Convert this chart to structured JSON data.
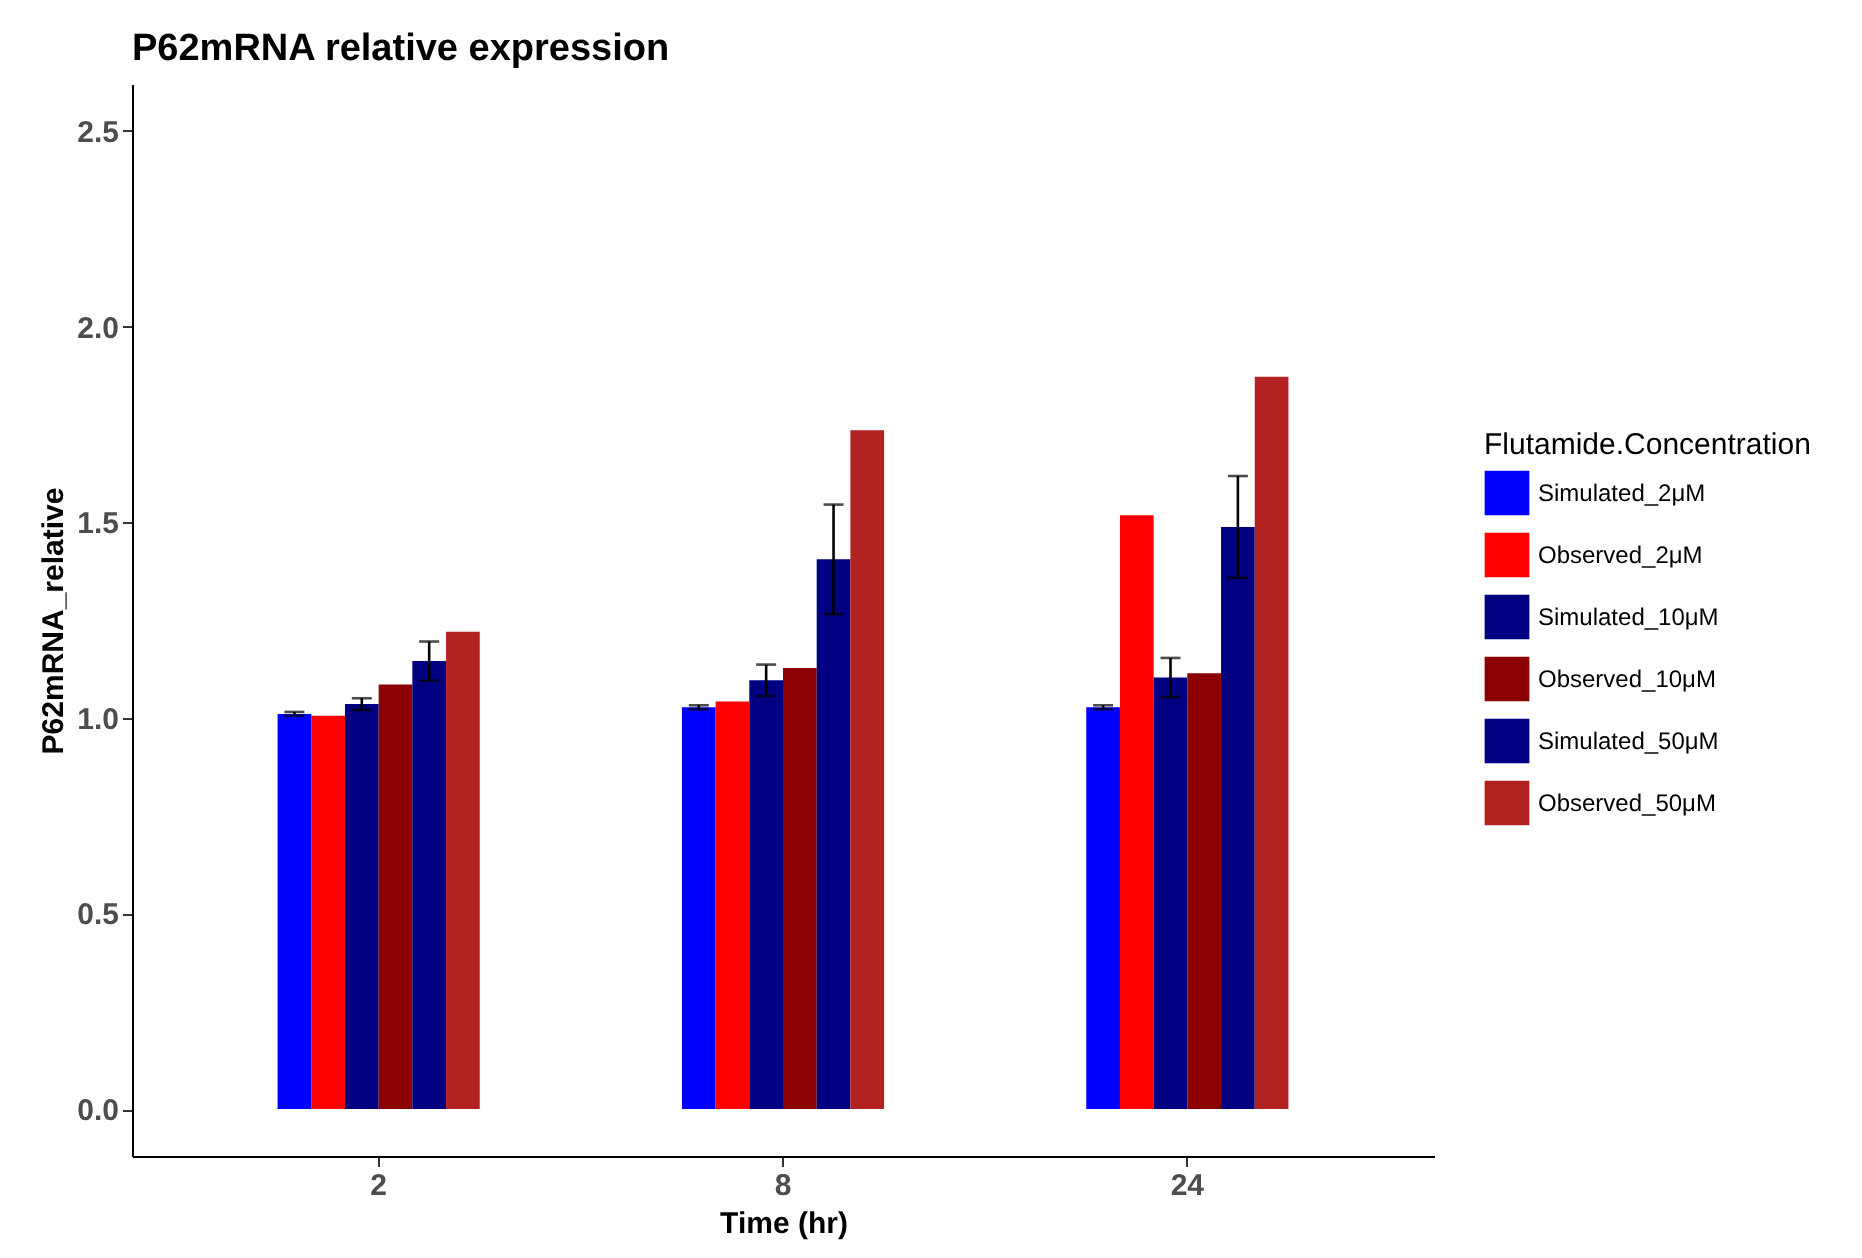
{
  "chart_data": {
    "type": "bar",
    "title": "P62mRNA relative expression",
    "xlabel": "Time (hr)",
    "ylabel": "P62mRNA_relative",
    "legend_title": "Flutamide.Concentration",
    "legend": "right",
    "grid": false,
    "categories": [
      "2",
      "8",
      "24"
    ],
    "ylim": [
      -0.12,
      2.62
    ],
    "yticks": [
      {
        "value": 0,
        "label": "0.0"
      },
      {
        "value": 0.5,
        "label": "0.5"
      },
      {
        "value": 1,
        "label": "1.0"
      },
      {
        "value": 1.5,
        "label": "1.5"
      },
      {
        "value": 2,
        "label": "2.0"
      },
      {
        "value": 2.5,
        "label": "2.5"
      }
    ],
    "series": [
      {
        "name": "Simulated_2μM",
        "color": "#0000ff",
        "values": [
          1.01,
          1.027,
          1.027
        ],
        "errors": [
          0.005,
          0.005,
          0.005
        ]
      },
      {
        "name": "Observed_2μM",
        "color": "#ff0000",
        "values": [
          1.005,
          1.042,
          1.518
        ]
      },
      {
        "name": "Simulated_10μM",
        "color": "#000080",
        "values": [
          1.035,
          1.096,
          1.103
        ],
        "errors": [
          0.015,
          0.04,
          0.05
        ]
      },
      {
        "name": "Observed_10μM",
        "color": "#8b0000",
        "values": [
          1.085,
          1.127,
          1.114
        ]
      },
      {
        "name": "Simulated_50μM",
        "color": "#000080",
        "values": [
          1.145,
          1.405,
          1.488
        ],
        "errors": [
          0.05,
          0.14,
          0.13
        ]
      },
      {
        "name": "Observed_50μM",
        "color": "#b22222",
        "values": [
          1.22,
          1.735,
          1.872
        ]
      }
    ]
  }
}
